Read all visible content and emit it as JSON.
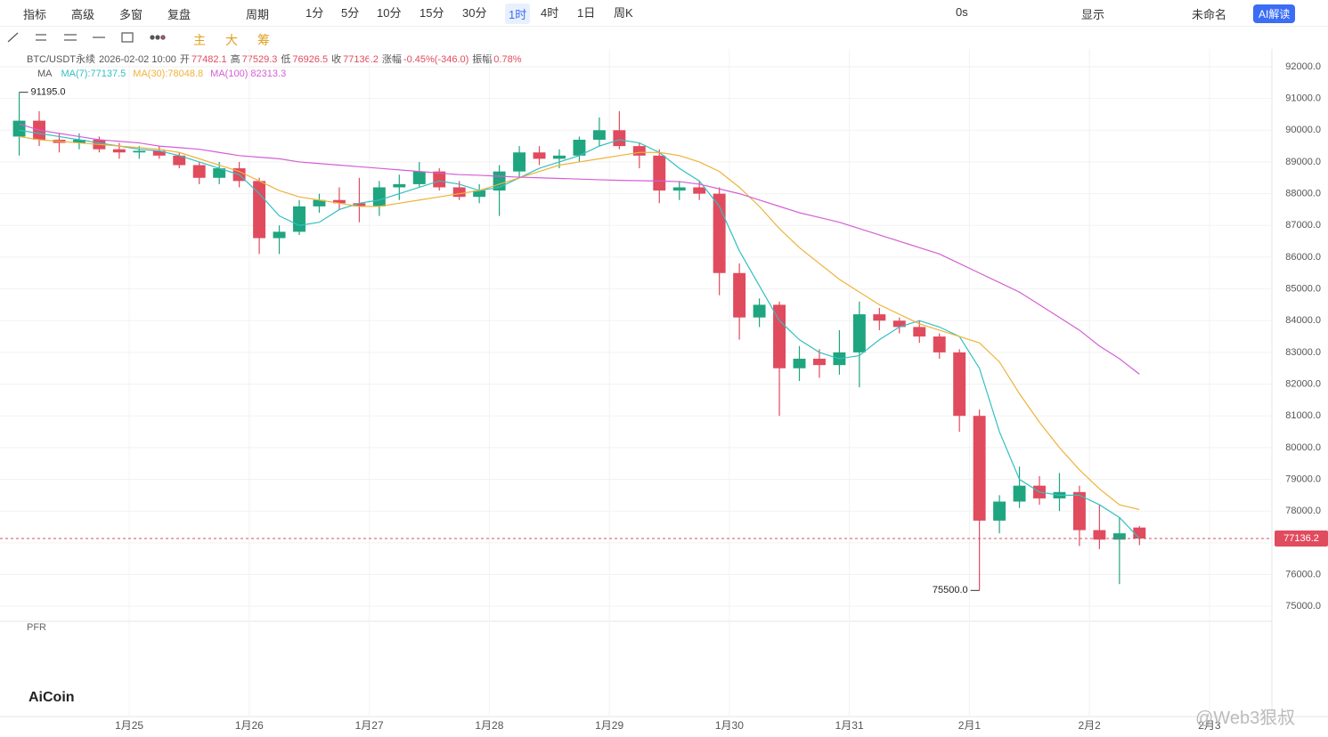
{
  "toolbar": {
    "left": [
      "指标",
      "高级",
      "多窗",
      "复盘"
    ],
    "period": "周期",
    "intervals": [
      "1分",
      "5分",
      "10分",
      "15分",
      "30分",
      "1时",
      "4时",
      "1日",
      "周K"
    ],
    "active_interval": "1时",
    "right": [
      "0s",
      "显示",
      "未命名"
    ],
    "ai": "AI解读"
  },
  "drawing_tools": [
    "主",
    "大",
    "筹"
  ],
  "chart_data": {
    "type": "candlestick",
    "symbol": "BTC/USDT永续",
    "time": "2026-02-02 10:00",
    "ohlc_labels": [
      "开",
      "高",
      "低",
      "收"
    ],
    "change_label": "涨幅",
    "change": "-0.45%(-346.0)",
    "amplitude_label": "振幅",
    "amplitude": "0.78%",
    "indicator": "MA",
    "up_color": "#1fa57f",
    "down_color": "#e04b5e",
    "candles": [
      [
        89800,
        91195,
        89200,
        90300
      ],
      [
        90300,
        90600,
        89500,
        89700
      ],
      [
        89700,
        89900,
        89300,
        89600
      ],
      [
        89600,
        89900,
        89400,
        89700
      ],
      [
        89700,
        89800,
        89300,
        89400
      ],
      [
        89400,
        89600,
        89100,
        89300
      ],
      [
        89300,
        89500,
        89100,
        89350
      ],
      [
        89350,
        89500,
        89100,
        89200
      ],
      [
        89200,
        89300,
        88800,
        88900
      ],
      [
        88900,
        89000,
        88300,
        88500
      ],
      [
        88500,
        89000,
        88300,
        88800
      ],
      [
        88800,
        89000,
        88200,
        88400
      ],
      [
        88400,
        88500,
        86100,
        86600
      ],
      [
        86600,
        87000,
        86100,
        86800
      ],
      [
        86800,
        87800,
        86700,
        87600
      ],
      [
        87600,
        88000,
        87400,
        87800
      ],
      [
        87800,
        88200,
        87500,
        87700
      ],
      [
        87700,
        88500,
        87100,
        87600
      ],
      [
        87600,
        88400,
        87300,
        88200
      ],
      [
        88200,
        88600,
        87800,
        88300
      ],
      [
        88300,
        89000,
        88200,
        88700
      ],
      [
        88700,
        88800,
        88100,
        88200
      ],
      [
        88200,
        88400,
        87800,
        87900
      ],
      [
        87900,
        88300,
        87700,
        88100
      ],
      [
        88100,
        88900,
        87300,
        88700
      ],
      [
        88700,
        89500,
        88500,
        89300
      ],
      [
        89300,
        89500,
        88900,
        89100
      ],
      [
        89100,
        89400,
        88800,
        89200
      ],
      [
        89200,
        89800,
        89000,
        89700
      ],
      [
        89700,
        90400,
        89500,
        90000
      ],
      [
        90000,
        90600,
        89400,
        89500
      ],
      [
        89500,
        89600,
        88800,
        89200
      ],
      [
        89200,
        89400,
        87700,
        88100
      ],
      [
        88100,
        88400,
        87800,
        88200
      ],
      [
        88200,
        88400,
        87800,
        88000
      ],
      [
        88000,
        88200,
        84800,
        85500
      ],
      [
        85500,
        85800,
        83400,
        84100
      ],
      [
        84100,
        84700,
        83800,
        84500
      ],
      [
        84500,
        84600,
        81000,
        82500
      ],
      [
        82500,
        83200,
        82100,
        82800
      ],
      [
        82800,
        83100,
        82200,
        82600
      ],
      [
        82600,
        83700,
        82300,
        83000
      ],
      [
        83000,
        84600,
        81900,
        84200
      ],
      [
        84200,
        84400,
        83700,
        84000
      ],
      [
        84000,
        84100,
        83600,
        83800
      ],
      [
        83800,
        84000,
        83300,
        83500
      ],
      [
        83500,
        83600,
        82800,
        83000
      ],
      [
        83000,
        83100,
        80500,
        81000
      ],
      [
        81000,
        81200,
        75500,
        77700
      ],
      [
        77700,
        78500,
        77300,
        78300
      ],
      [
        78300,
        79400,
        78100,
        78800
      ],
      [
        78800,
        79100,
        78200,
        78400
      ],
      [
        78400,
        79200,
        78000,
        78600
      ],
      [
        78600,
        78800,
        76900,
        77400
      ],
      [
        77400,
        78200,
        76800,
        77100
      ],
      [
        77100,
        77800,
        75700,
        77300
      ],
      [
        77482.1,
        77529.3,
        76926.5,
        77136.2
      ]
    ],
    "series": [
      {
        "name": "MA(7)",
        "color": "#35bfc0",
        "values": [
          90000,
          89900,
          89800,
          89700,
          89600,
          89500,
          89400,
          89350,
          89200,
          89000,
          88800,
          88600,
          88000,
          87300,
          87000,
          87100,
          87500,
          87700,
          87800,
          88000,
          88200,
          88400,
          88300,
          88100,
          88200,
          88500,
          88800,
          89000,
          89200,
          89500,
          89700,
          89600,
          89300,
          88800,
          88400,
          87600,
          86200,
          85100,
          84000,
          83400,
          83000,
          82800,
          82900,
          83400,
          83800,
          84000,
          83800,
          83500,
          82500,
          80500,
          79000,
          78600,
          78500,
          78500,
          78200,
          77800,
          77137.5
        ]
      },
      {
        "name": "MA(30)",
        "color": "#efb23a",
        "values": [
          89800,
          89700,
          89650,
          89600,
          89550,
          89500,
          89450,
          89400,
          89300,
          89100,
          88900,
          88700,
          88400,
          88100,
          87900,
          87800,
          87700,
          87600,
          87600,
          87700,
          87800,
          87900,
          88000,
          88100,
          88300,
          88500,
          88700,
          88900,
          89000,
          89100,
          89200,
          89300,
          89300,
          89200,
          89000,
          88700,
          88200,
          87600,
          86900,
          86300,
          85800,
          85300,
          84900,
          84500,
          84200,
          83900,
          83700,
          83500,
          83300,
          82700,
          81700,
          80800,
          80000,
          79300,
          78700,
          78200,
          78048.8
        ]
      },
      {
        "name": "MA(100)",
        "color": "#d45fd4",
        "values": [
          90200,
          90000,
          89900,
          89800,
          89700,
          89650,
          89600,
          89500,
          89450,
          89400,
          89300,
          89200,
          89150,
          89100,
          89000,
          88950,
          88900,
          88850,
          88800,
          88750,
          88700,
          88650,
          88600,
          88580,
          88550,
          88520,
          88500,
          88480,
          88460,
          88440,
          88420,
          88410,
          88400,
          88380,
          88300,
          88150,
          88000,
          87800,
          87600,
          87400,
          87250,
          87100,
          86900,
          86700,
          86500,
          86300,
          86100,
          85800,
          85500,
          85200,
          84900,
          84500,
          84100,
          83700,
          83200,
          82800,
          82313.3
        ]
      }
    ],
    "ylim": [
      74500,
      92560
    ],
    "yticks": [
      {
        "value": 75000,
        "label": "75000.0"
      },
      {
        "value": 76000,
        "label": "76000.0"
      },
      {
        "value": 77000,
        "label": "77000.0"
      },
      {
        "value": 78000,
        "label": "78000.0"
      },
      {
        "value": 79000,
        "label": "79000.0"
      },
      {
        "value": 80000,
        "label": "80000.0"
      },
      {
        "value": 81000,
        "label": "81000.0"
      },
      {
        "value": 82000,
        "label": "82000.0"
      },
      {
        "value": 83000,
        "label": "83000.0"
      },
      {
        "value": 84000,
        "label": "84000.0"
      },
      {
        "value": 85000,
        "label": "85000.0"
      },
      {
        "value": 86000,
        "label": "86000.0"
      },
      {
        "value": 87000,
        "label": "87000.0"
      },
      {
        "value": 88000,
        "label": "88000.0"
      },
      {
        "value": 89000,
        "label": "89000.0"
      },
      {
        "value": 90000,
        "label": "90000.0"
      },
      {
        "value": 91000,
        "label": "91000.0"
      },
      {
        "value": 92000,
        "label": "92000.0"
      }
    ],
    "xlim": [
      -0.96,
      62.62
    ],
    "xticks": [
      {
        "value": 5.5,
        "label": "1月25"
      },
      {
        "value": 11.5,
        "label": "1月26"
      },
      {
        "value": 17.5,
        "label": "1月27"
      },
      {
        "value": 23.5,
        "label": "1月28"
      },
      {
        "value": 29.5,
        "label": "1月29"
      },
      {
        "value": 35.5,
        "label": "1月30"
      },
      {
        "value": 41.5,
        "label": "1月31"
      },
      {
        "value": 47.5,
        "label": "2月1"
      },
      {
        "value": 53.5,
        "label": "2月2"
      },
      {
        "value": 59.5,
        "label": "2月3"
      }
    ],
    "annotations": [
      {
        "x": 0,
        "value": 91195,
        "label": "91195.0",
        "side": "right"
      },
      {
        "x": 48,
        "value": 75500,
        "label": "75500.0",
        "side": "left"
      }
    ]
  },
  "indicator_panel": "PFR",
  "logo": "AiCoin",
  "watermark": "@Web3狠叔"
}
